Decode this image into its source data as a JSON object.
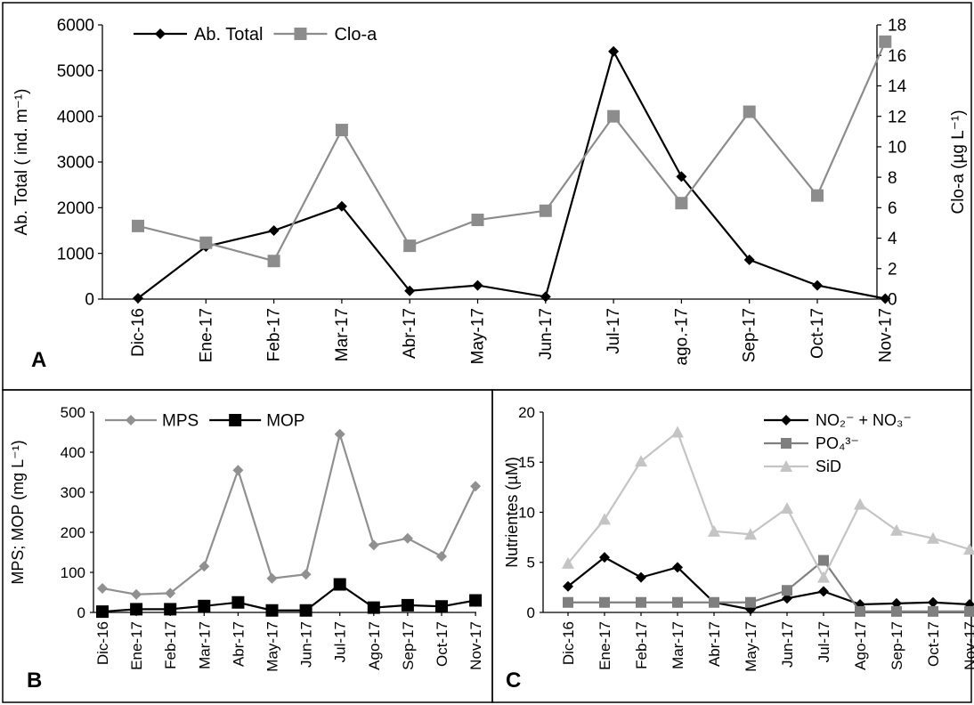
{
  "chart_data": [
    {
      "panel_label": "A",
      "type": "line",
      "x": [
        "Dic-16",
        "Ene-17",
        "Feb-17",
        "Mar-17",
        "Abr-17",
        "May-17",
        "Jun-17",
        "Jul-17",
        "ago.-17",
        "Sep-17",
        "Oct-17",
        "Nov-17"
      ],
      "ylabel": "Ab. Total ( ind. m⁻¹)",
      "y2label": "Clo-a (µg L⁻¹)",
      "ylim": [
        0,
        6000
      ],
      "y2lim": [
        0,
        18
      ],
      "yticks": [
        "0",
        "1000",
        "2000",
        "3000",
        "4000",
        "5000",
        "6000"
      ],
      "y2ticks": [
        "0",
        "2",
        "4",
        "6",
        "8",
        "10",
        "12",
        "14",
        "16",
        "18"
      ],
      "legend_position": "top-left",
      "grid": false,
      "series": [
        {
          "name": "Ab. Total",
          "axis": "left",
          "marker": "diamond",
          "color": "#000000",
          "values": [
            20,
            1150,
            1500,
            2030,
            180,
            300,
            50,
            5420,
            2680,
            860,
            300,
            10
          ]
        },
        {
          "name": "Clo-a",
          "axis": "right",
          "marker": "square",
          "color": "#8c8c8c",
          "values": [
            4.8,
            3.7,
            2.5,
            11.1,
            3.5,
            5.2,
            5.8,
            12.0,
            6.3,
            12.3,
            6.8,
            16.9
          ]
        }
      ]
    },
    {
      "panel_label": "B",
      "type": "line",
      "x": [
        "Dic-16",
        "Ene-17",
        "Feb-17",
        "Mar-17",
        "Abr-17",
        "May-17",
        "Jun-17",
        "Jul-17",
        "Ago-17",
        "Sep-17",
        "Oct-17",
        "Nov-17"
      ],
      "ylabel": "MPS; MOP (mg L⁻¹)",
      "ylim": [
        0,
        500
      ],
      "yticks": [
        "0",
        "100",
        "200",
        "300",
        "400",
        "500"
      ],
      "legend_position": "top-left",
      "grid": false,
      "series": [
        {
          "name": "MPS",
          "marker": "diamond",
          "color": "#909090",
          "values": [
            60,
            45,
            48,
            115,
            355,
            85,
            95,
            445,
            168,
            185,
            140,
            315
          ]
        },
        {
          "name": "MOP",
          "marker": "square",
          "color": "#000000",
          "values": [
            2,
            8,
            8,
            16,
            25,
            5,
            5,
            70,
            12,
            18,
            15,
            30
          ]
        }
      ]
    },
    {
      "panel_label": "C",
      "type": "line",
      "x": [
        "Dic-16",
        "Ene-17",
        "Feb-17",
        "Mar-17",
        "Abr-17",
        "May-17",
        "Jun-17",
        "Jul-17",
        "Ago-17",
        "Sep-17",
        "Oct-17",
        "Nov-17"
      ],
      "ylabel": "Nutrientes (µM)",
      "ylim": [
        0,
        20
      ],
      "yticks": [
        "0",
        "5",
        "10",
        "15",
        "20"
      ],
      "legend_position": "top-right",
      "grid": false,
      "series": [
        {
          "name": "NO₂⁻ + NO₃⁻",
          "marker": "diamond",
          "color": "#000000",
          "values": [
            2.6,
            5.5,
            3.5,
            4.5,
            1.0,
            0.3,
            1.4,
            2.1,
            0.8,
            0.9,
            1.0,
            0.8
          ]
        },
        {
          "name": "PO₄³⁻",
          "marker": "square",
          "color": "#7f7f7f",
          "values": [
            1.0,
            1.0,
            1.0,
            1.0,
            1.0,
            1.0,
            2.2,
            5.2,
            0.1,
            0.1,
            0.1,
            0.1
          ]
        },
        {
          "name": "SiD",
          "marker": "triangle",
          "color": "#c4c4c4",
          "values": [
            4.9,
            9.3,
            15.1,
            18.0,
            8.1,
            7.8,
            10.4,
            3.5,
            10.8,
            8.2,
            7.4,
            6.3
          ]
        }
      ]
    }
  ]
}
